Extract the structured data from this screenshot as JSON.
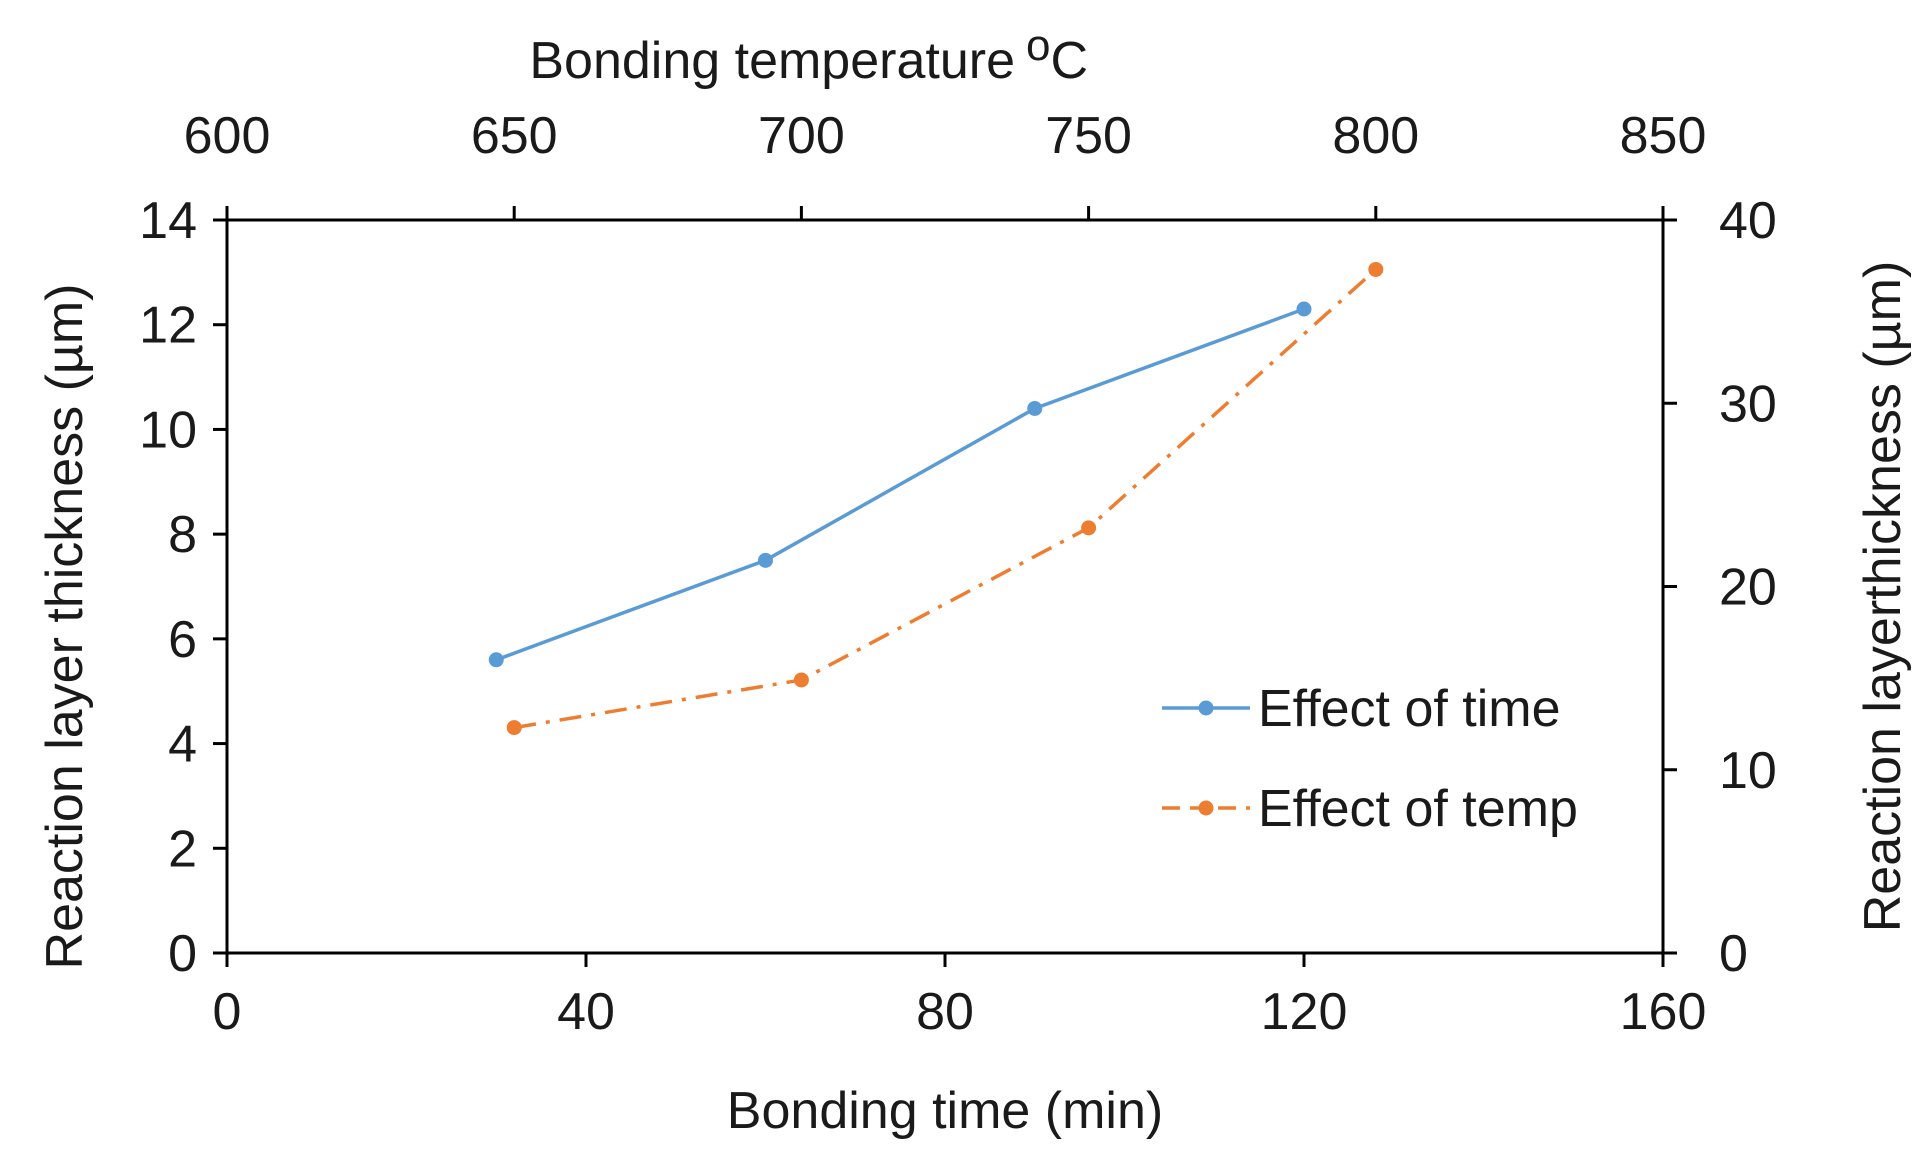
{
  "chart_data": {
    "type": "line",
    "bottom_axis": {
      "label": "Bonding time (min)",
      "range": [
        0,
        160
      ],
      "ticks": [
        0,
        40,
        80,
        120,
        160
      ]
    },
    "top_axis": {
      "label": "Bonding temperature",
      "label_unit": "oC",
      "range": [
        600,
        850
      ],
      "ticks": [
        600,
        650,
        700,
        750,
        800,
        850
      ]
    },
    "left_axis": {
      "label": "Reaction layer thickness (µm)",
      "range": [
        0,
        14
      ],
      "ticks": [
        0,
        2,
        4,
        6,
        8,
        10,
        12,
        14
      ]
    },
    "right_axis": {
      "label": "Reaction layerthickness (µm)",
      "range": [
        0,
        40
      ],
      "ticks": [
        0,
        10,
        20,
        30,
        40
      ]
    },
    "series": [
      {
        "name": "Effect of time",
        "color": "#5B9BD5",
        "line_style": "solid",
        "x_axis": "bottom",
        "y_axis": "left",
        "x": [
          30,
          60,
          90,
          120
        ],
        "y": [
          5.6,
          7.5,
          10.4,
          12.3
        ]
      },
      {
        "name": "Effect of temp",
        "color": "#ED7D31",
        "line_style": "dash-dot",
        "x_axis": "top",
        "y_axis": "right",
        "x": [
          650,
          700,
          750,
          800
        ],
        "y": [
          12.3,
          14.9,
          23.2,
          37.3
        ]
      }
    ],
    "legend": {
      "position": "lower-right",
      "entries": [
        "Effect of time",
        "Effect of temp"
      ]
    },
    "grid": false
  }
}
